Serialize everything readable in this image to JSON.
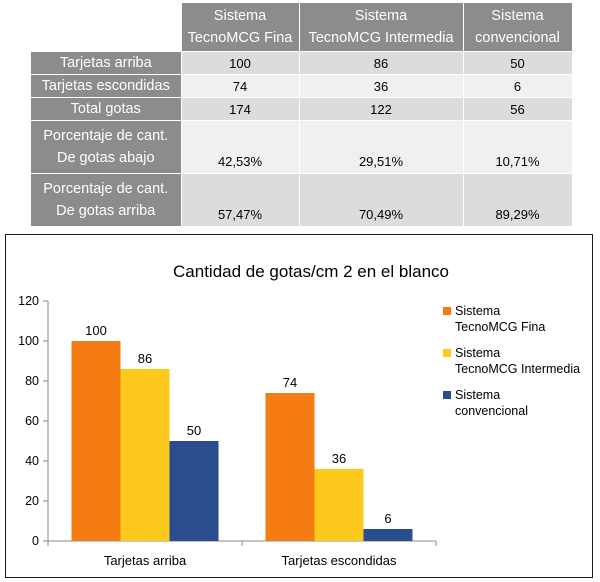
{
  "table": {
    "headers": [
      [
        "Sistema",
        "TecnoMCG Fina"
      ],
      [
        "Sistema",
        "TecnoMCG Intermedia"
      ],
      [
        "Sistema",
        "convencional"
      ]
    ],
    "rows": [
      {
        "label": [
          "Tarjetas arriba"
        ],
        "values": [
          "100",
          "86",
          "50"
        ]
      },
      {
        "label": [
          "Tarjetas escondidas"
        ],
        "values": [
          "74",
          "36",
          "6"
        ]
      },
      {
        "label": [
          "Total gotas"
        ],
        "values": [
          "174",
          "122",
          "56"
        ]
      },
      {
        "label": [
          "Porcentaje de cant.",
          "De gotas abajo"
        ],
        "values": [
          "42,53%",
          "29,51%",
          "10,71%"
        ]
      },
      {
        "label": [
          "Porcentaje de cant.",
          "De gotas arriba"
        ],
        "values": [
          "57,47%",
          "70,49%",
          "89,29%"
        ]
      }
    ]
  },
  "chart_data": {
    "type": "bar",
    "title": "Cantidad de gotas/cm 2 en el blanco",
    "categories": [
      "Tarjetas arriba",
      "Tarjetas escondidas"
    ],
    "series": [
      {
        "name": [
          "Sistema",
          "TecnoMCG Fina"
        ],
        "values": [
          100,
          74
        ],
        "color": "#f57c13"
      },
      {
        "name": [
          "Sistema",
          "TecnoMCG Intermedia"
        ],
        "values": [
          86,
          36
        ],
        "color": "#fdc91c"
      },
      {
        "name": [
          "Sistema",
          "convencional"
        ],
        "values": [
          50,
          6
        ],
        "color": "#2a4d8f"
      }
    ],
    "ylim": [
      0,
      120
    ],
    "yticks": [
      0,
      20,
      40,
      60,
      80,
      100,
      120
    ],
    "grid": false,
    "legend": "right",
    "xlabel": "",
    "ylabel": ""
  }
}
